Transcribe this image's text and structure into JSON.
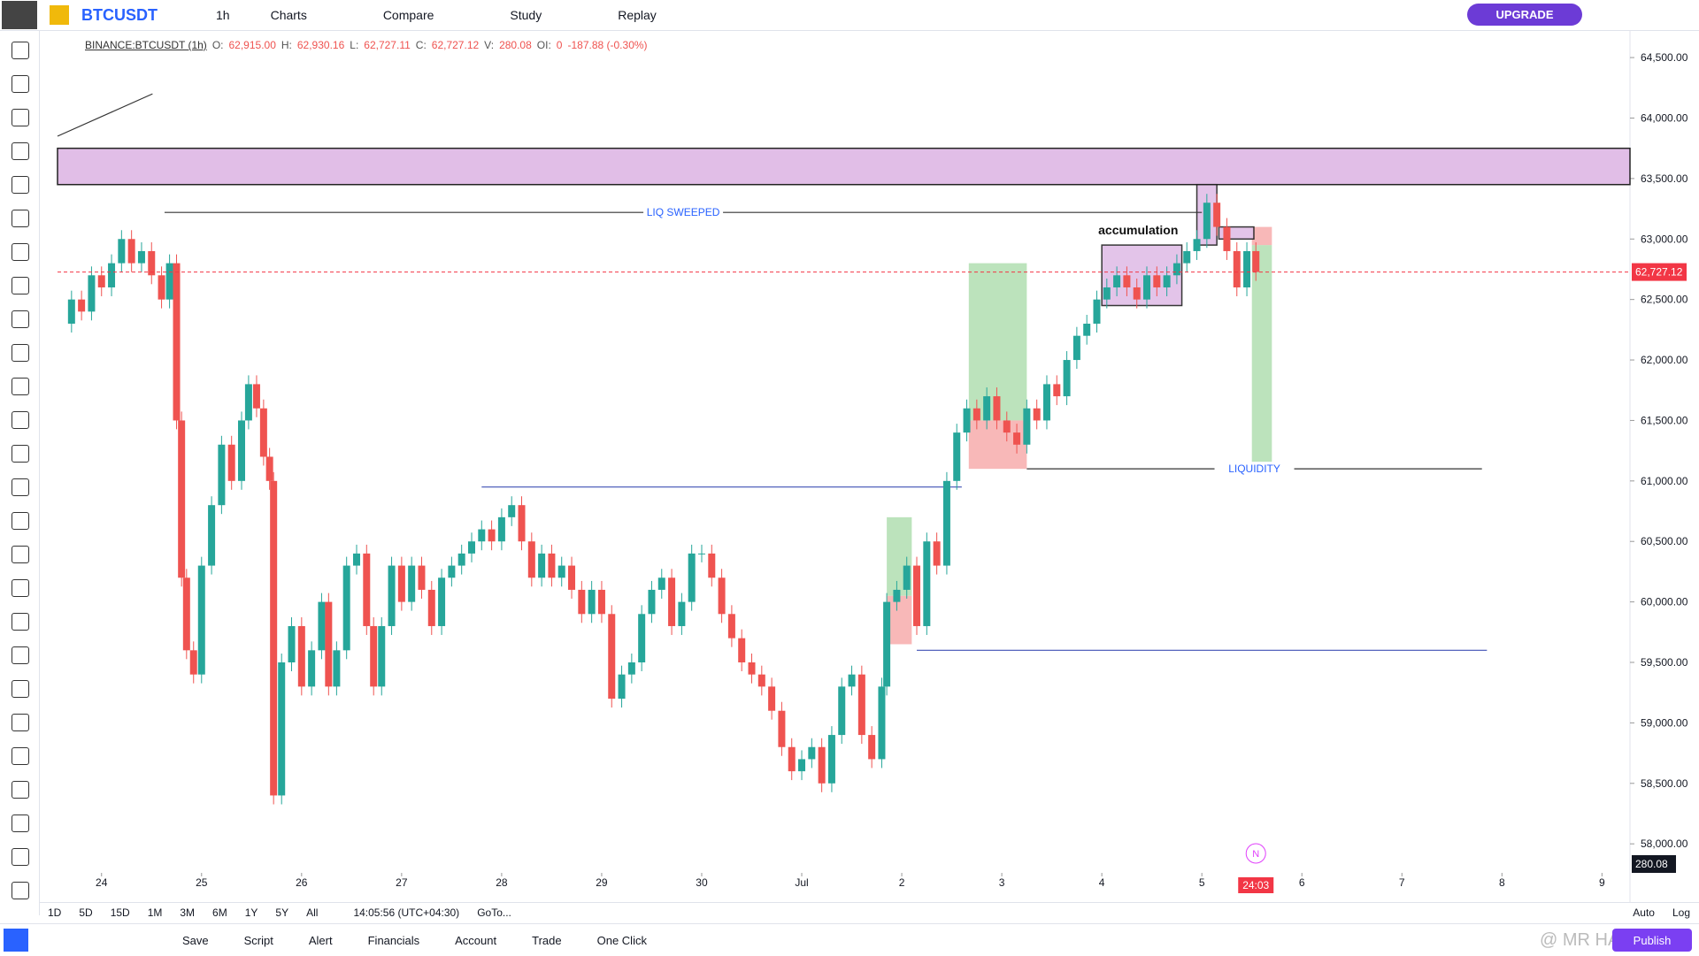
{
  "toolbar": {
    "symbol": "BTCUSDT",
    "interval": "1h",
    "buttons": [
      "Charts",
      "Compare",
      "Study",
      "Replay"
    ],
    "upgrade": "UPGRADE"
  },
  "legend": {
    "description": "BINANCE:BTCUSDT (1h)",
    "items": [
      {
        "label": "O:",
        "value": "62,915.00"
      },
      {
        "label": "H:",
        "value": "62,930.16"
      },
      {
        "label": "L:",
        "value": "62,727.11"
      },
      {
        "label": "C:",
        "value": "62,727.12"
      },
      {
        "label": "V:",
        "value": "280.08"
      },
      {
        "label": "OI:",
        "value": "0"
      }
    ],
    "change": "-187.88 (-0.30%)"
  },
  "chart_data": {
    "type": "candlestick",
    "x": [
      -0.42,
      -0.3,
      -0.2,
      -0.1,
      0.0,
      0.1,
      0.2,
      0.3,
      0.4,
      0.5,
      0.6,
      0.68,
      0.75,
      0.8,
      0.85,
      0.92,
      1.0,
      1.1,
      1.2,
      1.3,
      1.4,
      1.47,
      1.55,
      1.62,
      1.68,
      1.72,
      1.8,
      1.9,
      2.0,
      2.1,
      2.2,
      2.27,
      2.35,
      2.45,
      2.55,
      2.65,
      2.72,
      2.8,
      2.9,
      3.0,
      3.1,
      3.2,
      3.3,
      3.4,
      3.5,
      3.6,
      3.7,
      3.8,
      3.9,
      4.0,
      4.1,
      4.2,
      4.3,
      4.4,
      4.5,
      4.6,
      4.7,
      4.8,
      4.9,
      5.0,
      5.1,
      5.2,
      5.3,
      5.4,
      5.5,
      5.6,
      5.7,
      5.8,
      5.9,
      6.0,
      6.1,
      6.2,
      6.3,
      6.4,
      6.5,
      6.6,
      6.7,
      6.8,
      6.9,
      7.0,
      7.1,
      7.2,
      7.3,
      7.4,
      7.5,
      7.6,
      7.7,
      7.8,
      7.85,
      7.95,
      8.05,
      8.15,
      8.25,
      8.35,
      8.45,
      8.55,
      8.65,
      8.75,
      8.85,
      8.95,
      9.05,
      9.15,
      9.25,
      9.35,
      9.45,
      9.55,
      9.65,
      9.75,
      9.85,
      9.95,
      10.05,
      10.15,
      10.25,
      10.35,
      10.45,
      10.55,
      10.65,
      10.75,
      10.85,
      10.95,
      11.05,
      11.15,
      11.25,
      11.35,
      11.45,
      11.54
    ],
    "values": [
      62300,
      62500,
      62400,
      62700,
      62600,
      62800,
      63000,
      62800,
      62900,
      62700,
      62500,
      62800,
      61500,
      60200,
      59600,
      59400,
      60300,
      60800,
      61300,
      61000,
      61500,
      61800,
      61600,
      61200,
      61000,
      58400,
      59500,
      59800,
      59300,
      59600,
      60000,
      59300,
      59600,
      60300,
      60400,
      59800,
      59300,
      59800,
      60300,
      60000,
      60300,
      60100,
      59800,
      60200,
      60300,
      60400,
      60500,
      60600,
      60500,
      60700,
      60800,
      60500,
      60200,
      60400,
      60200,
      60300,
      60100,
      59900,
      60100,
      59900,
      59200,
      59400,
      59500,
      59900,
      60100,
      60200,
      59800,
      60000,
      60400,
      60400,
      60200,
      59900,
      59700,
      59500,
      59400,
      59300,
      59100,
      58800,
      58600,
      58700,
      58800,
      58500,
      58900,
      59300,
      59400,
      58900,
      58700,
      59300,
      60000,
      60100,
      60300,
      59800,
      60500,
      60300,
      61000,
      61400,
      61600,
      61500,
      61700,
      61500,
      61400,
      61300,
      61600,
      61500,
      61800,
      61700,
      62000,
      62200,
      62300,
      62500,
      62600,
      62700,
      62600,
      62500,
      62700,
      62600,
      62700,
      62800,
      62900,
      63000,
      63300,
      63100,
      62900,
      62600,
      62900,
      62727.12
    ],
    "up_color": "#26a69a",
    "down_color": "#ef5350",
    "xlim": [
      -0.44,
      15.28
    ],
    "xticks": [
      {
        "value": 0,
        "label": "24"
      },
      {
        "value": 1,
        "label": "25"
      },
      {
        "value": 2,
        "label": "26"
      },
      {
        "value": 3,
        "label": "27"
      },
      {
        "value": 4,
        "label": "28"
      },
      {
        "value": 5,
        "label": "29"
      },
      {
        "value": 6,
        "label": "30"
      },
      {
        "value": 7,
        "label": "Jul"
      },
      {
        "value": 8,
        "label": "2"
      },
      {
        "value": 9,
        "label": "3"
      },
      {
        "value": 10,
        "label": "4"
      },
      {
        "value": 11,
        "label": "5"
      },
      {
        "value": 12,
        "label": "6"
      },
      {
        "value": 13,
        "label": "7"
      },
      {
        "value": 14,
        "label": "8"
      },
      {
        "value": 15,
        "label": "9"
      }
    ],
    "ylim": [
      57760,
      64720
    ],
    "yticks": [
      {
        "value": 58000,
        "label": "58,000.00"
      },
      {
        "value": 58500,
        "label": "58,500.00"
      },
      {
        "value": 59000,
        "label": "59,000.00"
      },
      {
        "value": 59500,
        "label": "59,500.00"
      },
      {
        "value": 60000,
        "label": "60,000.00"
      },
      {
        "value": 60500,
        "label": "60,500.00"
      },
      {
        "value": 61000,
        "label": "61,000.00"
      },
      {
        "value": 61500,
        "label": "61,500.00"
      },
      {
        "value": 62000,
        "label": "62,000.00"
      },
      {
        "value": 62500,
        "label": "62,500.00"
      },
      {
        "value": 63000,
        "label": "63,000.00"
      },
      {
        "value": 63500,
        "label": "63,500.00"
      },
      {
        "value": 64000,
        "label": "64,000.00"
      },
      {
        "value": 64500,
        "label": "64,500.00"
      }
    ],
    "last_price": {
      "value": 62727.12,
      "label": "62,727.12"
    },
    "last_price_color": "#f23645",
    "volume_label": "280.08",
    "countdown": "24:03",
    "news_marker": "N",
    "zones": [
      {
        "y": [
          63450,
          63750
        ],
        "color": "#e1bee7"
      }
    ],
    "boxes": [
      {
        "x": [
          8.67,
          9.25
        ],
        "y": [
          61500,
          62800
        ],
        "color": "#b5e0b5"
      },
      {
        "x": [
          8.67,
          9.25
        ],
        "y": [
          61100,
          61500
        ],
        "color": "#f7b0b0"
      },
      {
        "x": [
          7.85,
          8.1
        ],
        "y": [
          60050,
          60700
        ],
        "color": "#b5e0b5"
      },
      {
        "x": [
          7.85,
          8.1
        ],
        "y": [
          59650,
          60050
        ],
        "color": "#f7b0b0"
      },
      {
        "x": [
          11.5,
          11.7
        ],
        "y": [
          61100,
          62950
        ],
        "color": "#b5e0b5"
      },
      {
        "x": [
          11.5,
          11.7
        ],
        "y": [
          62950,
          63100
        ],
        "color": "#f7b0b0"
      },
      {
        "x": [
          10.0,
          10.8
        ],
        "y": [
          62450,
          62950
        ],
        "color": "#e1bee7",
        "label": "accumulation"
      },
      {
        "x": [
          10.95,
          11.15
        ],
        "y": [
          62950,
          63450
        ],
        "color": "#e1bee7"
      },
      {
        "x": [
          11.17,
          11.52
        ],
        "y": [
          63000,
          63100
        ],
        "color": "#e1bee7"
      }
    ],
    "lines": [
      {
        "x": [
          0.63,
          11.0
        ],
        "y": [
          63220,
          63220
        ],
        "color": "#333333",
        "label": "LIQ SWEEPED"
      },
      {
        "x": [
          9.25,
          13.8
        ],
        "y": [
          61100,
          61100
        ],
        "color": "#333333",
        "label": "LIQUIDITY"
      },
      {
        "x": [
          3.8,
          8.6
        ],
        "y": [
          60950,
          60950
        ],
        "color": "#3f51b5"
      },
      {
        "x": [
          8.15,
          13.85
        ],
        "y": [
          59600,
          59600
        ],
        "color": "#3f51b5"
      },
      {
        "x": [
          -0.44,
          0.51
        ],
        "y": [
          63850,
          64200
        ],
        "color": "#333333"
      }
    ]
  },
  "timeframes": {
    "ranges": [
      "1D",
      "5D",
      "15D",
      "1M",
      "3M",
      "6M",
      "1Y",
      "5Y",
      "All"
    ],
    "time": "14:05:56 (UTC+04:30)",
    "goto": "GoTo...",
    "auto": "Auto",
    "log": "Log"
  },
  "bottom_bar": {
    "buttons": [
      "Save",
      "Script",
      "Alert",
      "Financials",
      "Account",
      "Trade",
      "One Click"
    ],
    "watermark": "@ MR HADI CP",
    "publish": "Publish"
  }
}
